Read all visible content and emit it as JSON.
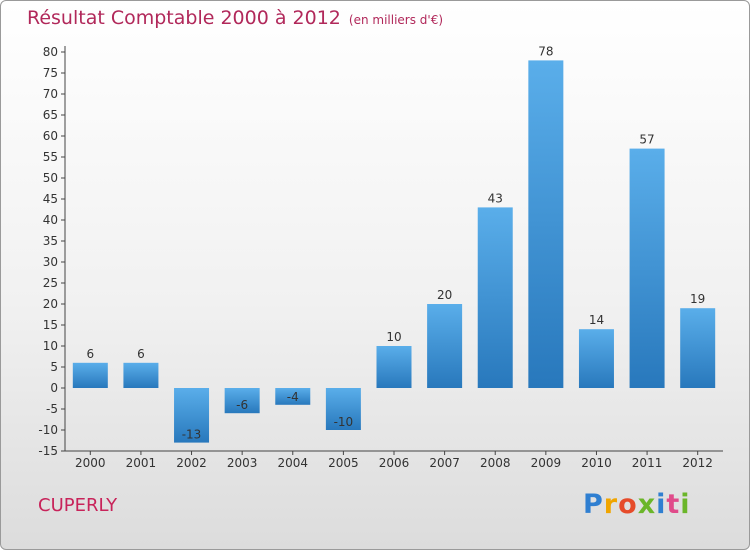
{
  "title": {
    "main": "Résultat Comptable 2000 à 2012",
    "sub": "(en milliers d'€)"
  },
  "town": "CUPERLY",
  "brand": {
    "letters": [
      "P",
      "r",
      "o",
      "x",
      "i",
      "t",
      "i"
    ]
  },
  "colors": {
    "bar_light": "#5aaeea",
    "bar_dark": "#2878bc",
    "title": "#b1285a",
    "town": "#c8235a"
  },
  "chart_data": {
    "type": "bar",
    "title": "Résultat Comptable 2000 à 2012",
    "subtitle": "(en milliers d'€)",
    "categories": [
      "2000",
      "2001",
      "2002",
      "2003",
      "2004",
      "2005",
      "2006",
      "2007",
      "2008",
      "2009",
      "2010",
      "2011",
      "2012"
    ],
    "values": [
      6,
      6,
      -13,
      -6,
      -4,
      -10,
      10,
      20,
      43,
      78,
      14,
      57,
      19
    ],
    "labels": [
      "6",
      "6",
      "-13",
      "-6",
      "-4",
      "-10",
      "10",
      "20",
      "43",
      "78",
      "14",
      "57",
      "19"
    ],
    "ylim": [
      -15,
      80
    ],
    "yticks": [
      80,
      75,
      70,
      65,
      60,
      55,
      50,
      45,
      40,
      35,
      30,
      25,
      20,
      15,
      10,
      5,
      0,
      -5,
      -10,
      -15
    ],
    "xlabel": "",
    "ylabel": "",
    "grid": false
  }
}
